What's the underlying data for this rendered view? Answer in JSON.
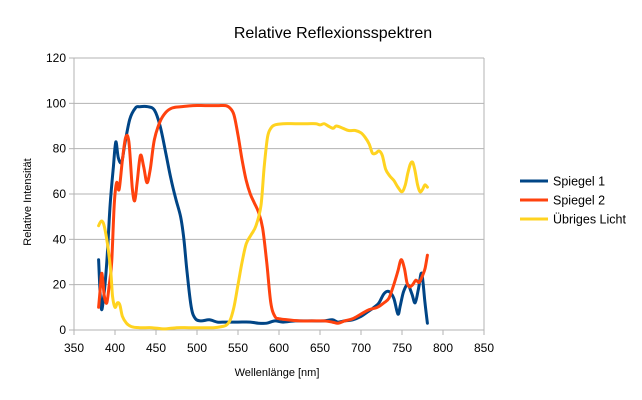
{
  "chart_data": {
    "type": "line",
    "title": "Relative Reflexionsspektren",
    "xlabel": "Wellenlänge [nm]",
    "ylabel": "Relative Intensität",
    "xlim": [
      350,
      850
    ],
    "ylim": [
      0,
      120
    ],
    "xticks": [
      "350",
      "400",
      "450",
      "500",
      "550",
      "600",
      "650",
      "700",
      "750",
      "800",
      "850"
    ],
    "yticks": [
      "0",
      "20",
      "40",
      "60",
      "80",
      "100",
      "120"
    ],
    "grid": true,
    "legend": "right",
    "series": [
      {
        "name": "Spiegel 1",
        "color": "#004586",
        "points": [
          [
            380,
            31
          ],
          [
            383,
            10
          ],
          [
            386,
            14
          ],
          [
            390,
            30
          ],
          [
            394,
            55
          ],
          [
            398,
            72
          ],
          [
            401,
            83
          ],
          [
            404,
            76
          ],
          [
            408,
            74
          ],
          [
            412,
            82
          ],
          [
            418,
            93
          ],
          [
            425,
            98
          ],
          [
            430,
            98.5
          ],
          [
            440,
            98.5
          ],
          [
            448,
            97
          ],
          [
            455,
            90
          ],
          [
            462,
            78
          ],
          [
            468,
            67
          ],
          [
            474,
            58
          ],
          [
            480,
            50
          ],
          [
            484,
            40
          ],
          [
            488,
            25
          ],
          [
            493,
            10
          ],
          [
            498,
            5
          ],
          [
            505,
            4
          ],
          [
            515,
            4.5
          ],
          [
            525,
            3.5
          ],
          [
            535,
            3.5
          ],
          [
            550,
            3.5
          ],
          [
            565,
            3.5
          ],
          [
            575,
            3
          ],
          [
            585,
            3
          ],
          [
            595,
            4
          ],
          [
            605,
            3.5
          ],
          [
            620,
            4
          ],
          [
            640,
            4
          ],
          [
            655,
            4
          ],
          [
            665,
            4.5
          ],
          [
            672,
            3.5
          ],
          [
            680,
            4
          ],
          [
            690,
            4.5
          ],
          [
            700,
            6
          ],
          [
            708,
            8
          ],
          [
            716,
            10
          ],
          [
            722,
            12
          ],
          [
            728,
            16
          ],
          [
            734,
            17
          ],
          [
            740,
            14
          ],
          [
            745,
            7
          ],
          [
            748,
            11
          ],
          [
            752,
            17
          ],
          [
            757,
            20
          ],
          [
            762,
            16
          ],
          [
            766,
            12
          ],
          [
            770,
            18
          ],
          [
            774,
            25
          ],
          [
            778,
            12
          ],
          [
            781,
            3
          ]
        ]
      },
      {
        "name": "Spiegel 2",
        "color": "#ff420e",
        "points": [
          [
            380,
            10
          ],
          [
            382,
            18
          ],
          [
            384,
            25
          ],
          [
            387,
            15
          ],
          [
            390,
            12
          ],
          [
            393,
            20
          ],
          [
            396,
            30
          ],
          [
            399,
            55
          ],
          [
            402,
            65
          ],
          [
            405,
            62
          ],
          [
            409,
            75
          ],
          [
            413,
            85
          ],
          [
            417,
            83
          ],
          [
            421,
            63
          ],
          [
            424,
            57
          ],
          [
            427,
            65
          ],
          [
            431,
            77
          ],
          [
            435,
            72
          ],
          [
            439,
            65
          ],
          [
            443,
            71
          ],
          [
            448,
            84
          ],
          [
            455,
            92
          ],
          [
            462,
            96
          ],
          [
            470,
            98
          ],
          [
            480,
            98.5
          ],
          [
            495,
            99
          ],
          [
            510,
            99
          ],
          [
            525,
            99
          ],
          [
            535,
            99
          ],
          [
            540,
            98
          ],
          [
            545,
            95
          ],
          [
            550,
            86
          ],
          [
            555,
            75
          ],
          [
            560,
            66
          ],
          [
            565,
            60
          ],
          [
            570,
            56
          ],
          [
            575,
            52
          ],
          [
            580,
            45
          ],
          [
            585,
            30
          ],
          [
            590,
            12
          ],
          [
            595,
            6
          ],
          [
            600,
            5
          ],
          [
            610,
            4.5
          ],
          [
            625,
            4
          ],
          [
            640,
            4
          ],
          [
            655,
            4
          ],
          [
            665,
            3.5
          ],
          [
            672,
            3
          ],
          [
            680,
            4
          ],
          [
            690,
            5
          ],
          [
            700,
            7
          ],
          [
            710,
            9
          ],
          [
            720,
            10
          ],
          [
            728,
            12
          ],
          [
            734,
            14
          ],
          [
            740,
            20
          ],
          [
            745,
            26
          ],
          [
            749,
            31
          ],
          [
            753,
            27
          ],
          [
            756,
            21
          ],
          [
            759,
            19
          ],
          [
            763,
            20
          ],
          [
            767,
            22
          ],
          [
            771,
            21
          ],
          [
            775,
            24
          ],
          [
            778,
            27
          ],
          [
            781,
            33
          ]
        ]
      },
      {
        "name": "Übriges Licht",
        "color": "#ffd320",
        "points": [
          [
            380,
            46
          ],
          [
            383,
            48
          ],
          [
            386,
            47
          ],
          [
            389,
            42
          ],
          [
            392,
            35
          ],
          [
            395,
            25
          ],
          [
            397,
            15
          ],
          [
            400,
            10
          ],
          [
            403,
            12
          ],
          [
            406,
            11
          ],
          [
            409,
            6
          ],
          [
            414,
            3
          ],
          [
            420,
            1.5
          ],
          [
            430,
            1
          ],
          [
            445,
            1
          ],
          [
            460,
            0.5
          ],
          [
            475,
            1
          ],
          [
            490,
            1
          ],
          [
            505,
            1
          ],
          [
            520,
            1
          ],
          [
            530,
            1.5
          ],
          [
            535,
            2
          ],
          [
            540,
            4
          ],
          [
            545,
            10
          ],
          [
            550,
            20
          ],
          [
            555,
            30
          ],
          [
            560,
            38
          ],
          [
            566,
            42
          ],
          [
            572,
            46
          ],
          [
            578,
            55
          ],
          [
            582,
            72
          ],
          [
            586,
            85
          ],
          [
            590,
            89
          ],
          [
            595,
            90.5
          ],
          [
            605,
            91
          ],
          [
            620,
            91
          ],
          [
            635,
            91
          ],
          [
            645,
            91
          ],
          [
            650,
            90.5
          ],
          [
            655,
            91
          ],
          [
            660,
            90
          ],
          [
            666,
            89
          ],
          [
            670,
            90
          ],
          [
            678,
            89
          ],
          [
            685,
            88
          ],
          [
            693,
            88
          ],
          [
            700,
            87
          ],
          [
            705,
            85
          ],
          [
            710,
            82
          ],
          [
            714,
            78
          ],
          [
            718,
            78
          ],
          [
            722,
            79
          ],
          [
            726,
            77
          ],
          [
            730,
            71
          ],
          [
            735,
            68
          ],
          [
            740,
            66
          ],
          [
            745,
            63
          ],
          [
            750,
            61
          ],
          [
            754,
            64
          ],
          [
            757,
            69
          ],
          [
            760,
            73
          ],
          [
            763,
            74
          ],
          [
            766,
            70
          ],
          [
            769,
            64
          ],
          [
            772,
            61
          ],
          [
            775,
            62
          ],
          [
            778,
            64
          ],
          [
            781,
            63
          ]
        ]
      }
    ]
  }
}
